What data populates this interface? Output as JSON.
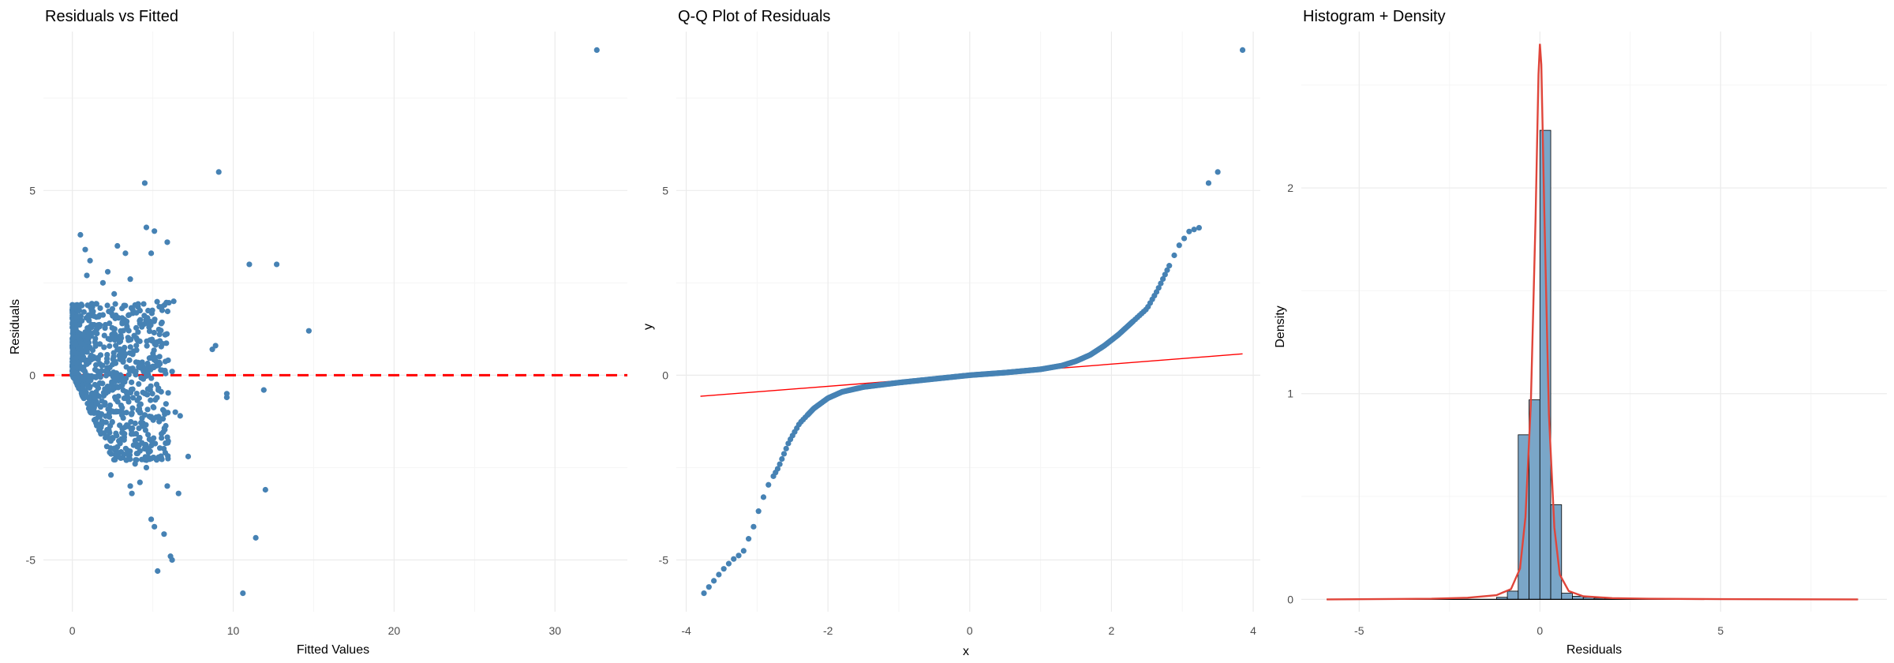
{
  "colors": {
    "points": "#4682b4",
    "zero_line": "#ff0000",
    "qq_line": "#ff0000",
    "bars": "#7aa6c8",
    "bar_outline": "#000000",
    "density": "#e0453a",
    "grid_major": "#ebebeb",
    "grid_minor": "#f5f5f5"
  },
  "chart_data": [
    {
      "type": "scatter",
      "title": "Residuals vs Fitted",
      "xlabel": "Fitted Values",
      "ylabel": "Residuals",
      "xlim": [
        -1.8,
        34.5
      ],
      "ylim": [
        -6.4,
        9.3
      ],
      "xticks": [
        0,
        10,
        20,
        30
      ],
      "xtick_labels": [
        "0",
        "10",
        "20",
        "30"
      ],
      "yticks": [
        -5,
        0,
        5
      ],
      "ytick_labels": [
        "-5",
        "0",
        "5"
      ],
      "grid": true,
      "reference_line": {
        "y": 0,
        "style": "dashed"
      },
      "dense_cluster": {
        "x_range": [
          0,
          6
        ],
        "upper_envelope": 2,
        "lower_slope": -0.9,
        "lower_floor": -2.3
      },
      "points": [
        [
          32.6,
          8.8
        ],
        [
          9.1,
          5.5
        ],
        [
          4.5,
          5.2
        ],
        [
          4.6,
          4.0
        ],
        [
          5.1,
          3.9
        ],
        [
          0.5,
          3.8
        ],
        [
          5.9,
          3.6
        ],
        [
          0.8,
          3.4
        ],
        [
          2.8,
          3.5
        ],
        [
          4.9,
          3.3
        ],
        [
          3.3,
          3.3
        ],
        [
          1.1,
          3.1
        ],
        [
          11.0,
          3.0
        ],
        [
          12.7,
          3.0
        ],
        [
          2.2,
          2.8
        ],
        [
          3.6,
          2.6
        ],
        [
          1.9,
          2.5
        ],
        [
          0.9,
          2.7
        ],
        [
          6.3,
          2.0
        ],
        [
          2.6,
          2.2
        ],
        [
          14.7,
          1.2
        ],
        [
          3.9,
          1.9
        ],
        [
          4.2,
          1.4
        ],
        [
          8.9,
          0.8
        ],
        [
          8.7,
          0.7
        ],
        [
          5.3,
          0.9
        ],
        [
          6.2,
          0.1
        ],
        [
          9.6,
          -0.5
        ],
        [
          11.9,
          -0.4
        ],
        [
          9.6,
          -0.6
        ],
        [
          6.4,
          -1.0
        ],
        [
          6.7,
          -1.1
        ],
        [
          7.2,
          -2.2
        ],
        [
          3.9,
          -2.4
        ],
        [
          4.6,
          -2.5
        ],
        [
          4.2,
          -2.9
        ],
        [
          2.4,
          -2.7
        ],
        [
          3.6,
          -3.0
        ],
        [
          5.9,
          -3.0
        ],
        [
          6.6,
          -3.2
        ],
        [
          3.7,
          -3.2
        ],
        [
          12.0,
          -3.1
        ],
        [
          4.9,
          -3.9
        ],
        [
          5.1,
          -4.1
        ],
        [
          5.7,
          -4.3
        ],
        [
          11.4,
          -4.4
        ],
        [
          6.1,
          -4.9
        ],
        [
          6.2,
          -5.0
        ],
        [
          5.3,
          -5.3
        ],
        [
          10.6,
          -5.9
        ]
      ]
    },
    {
      "type": "scatter",
      "title": "Q-Q Plot of Residuals",
      "xlabel": "x",
      "ylabel": "y",
      "xlim": [
        -4.14,
        4.1
      ],
      "ylim": [
        -6.4,
        9.3
      ],
      "xticks": [
        -4,
        -2,
        0,
        2,
        4
      ],
      "xtick_labels": [
        "-4",
        "-2",
        "0",
        "2",
        "4"
      ],
      "yticks": [
        -5,
        0,
        5
      ],
      "ytick_labels": [
        "-5",
        "0",
        "5"
      ],
      "grid": true,
      "reference_line": {
        "intercept": 0,
        "slope": 0.15,
        "x_range": [
          -3.8,
          3.85
        ]
      },
      "curve": [
        [
          -3.75,
          -5.9
        ],
        [
          -3.5,
          -5.3
        ],
        [
          -3.35,
          -5.0
        ],
        [
          -3.2,
          -4.8
        ],
        [
          -3.05,
          -4.1
        ],
        [
          -2.95,
          -3.5
        ],
        [
          -2.85,
          -3.0
        ],
        [
          -2.7,
          -2.5
        ],
        [
          -2.55,
          -1.8
        ],
        [
          -2.4,
          -1.3
        ],
        [
          -2.2,
          -0.9
        ],
        [
          -2.0,
          -0.62
        ],
        [
          -1.8,
          -0.45
        ],
        [
          -1.5,
          -0.32
        ],
        [
          -1.0,
          -0.2
        ],
        [
          -0.5,
          -0.1
        ],
        [
          0,
          0
        ],
        [
          0.5,
          0.07
        ],
        [
          1.0,
          0.16
        ],
        [
          1.3,
          0.26
        ],
        [
          1.5,
          0.38
        ],
        [
          1.7,
          0.55
        ],
        [
          1.9,
          0.8
        ],
        [
          2.1,
          1.1
        ],
        [
          2.3,
          1.45
        ],
        [
          2.5,
          1.8
        ],
        [
          2.65,
          2.3
        ],
        [
          2.8,
          2.9
        ],
        [
          2.95,
          3.5
        ],
        [
          3.1,
          3.9
        ],
        [
          3.25,
          4.0
        ]
      ],
      "extreme_points": [
        [
          3.37,
          5.2
        ],
        [
          3.5,
          5.5
        ],
        [
          3.85,
          8.8
        ]
      ]
    },
    {
      "type": "bar",
      "title": "Histogram + Density",
      "xlabel": "Residuals",
      "ylabel": "Density",
      "xlim": [
        -6.6,
        9.6
      ],
      "ylim": [
        -0.06,
        2.76
      ],
      "xticks": [
        -5,
        0,
        5
      ],
      "xtick_labels": [
        "-5",
        "0",
        "5"
      ],
      "yticks": [
        0,
        1,
        2
      ],
      "ytick_labels": [
        "0",
        "1",
        "2"
      ],
      "grid": true,
      "bin_width": 0.3,
      "bins": [
        {
          "x": -1.05,
          "density": 0.01
        },
        {
          "x": -0.75,
          "density": 0.04
        },
        {
          "x": -0.45,
          "density": 0.8
        },
        {
          "x": -0.15,
          "density": 0.97
        },
        {
          "x": 0.15,
          "density": 2.28
        },
        {
          "x": 0.45,
          "density": 0.46
        },
        {
          "x": 0.75,
          "density": 0.03
        },
        {
          "x": 1.05,
          "density": 0.015
        },
        {
          "x": 1.35,
          "density": 0.01
        },
        {
          "x": 1.65,
          "density": 0.006
        },
        {
          "x": 1.95,
          "density": 0.004
        }
      ],
      "density_curve": [
        [
          -5.9,
          0.0
        ],
        [
          -3.0,
          0.003
        ],
        [
          -2.0,
          0.008
        ],
        [
          -1.2,
          0.02
        ],
        [
          -0.8,
          0.05
        ],
        [
          -0.55,
          0.15
        ],
        [
          -0.4,
          0.4
        ],
        [
          -0.25,
          0.95
        ],
        [
          -0.12,
          1.85
        ],
        [
          -0.04,
          2.55
        ],
        [
          0.0,
          2.7
        ],
        [
          0.04,
          2.6
        ],
        [
          0.12,
          1.9
        ],
        [
          0.25,
          0.9
        ],
        [
          0.4,
          0.35
        ],
        [
          0.55,
          0.12
        ],
        [
          0.8,
          0.04
        ],
        [
          1.2,
          0.015
        ],
        [
          2.0,
          0.006
        ],
        [
          3.0,
          0.003
        ],
        [
          5.0,
          0.001
        ],
        [
          8.8,
          0.0
        ]
      ]
    }
  ]
}
